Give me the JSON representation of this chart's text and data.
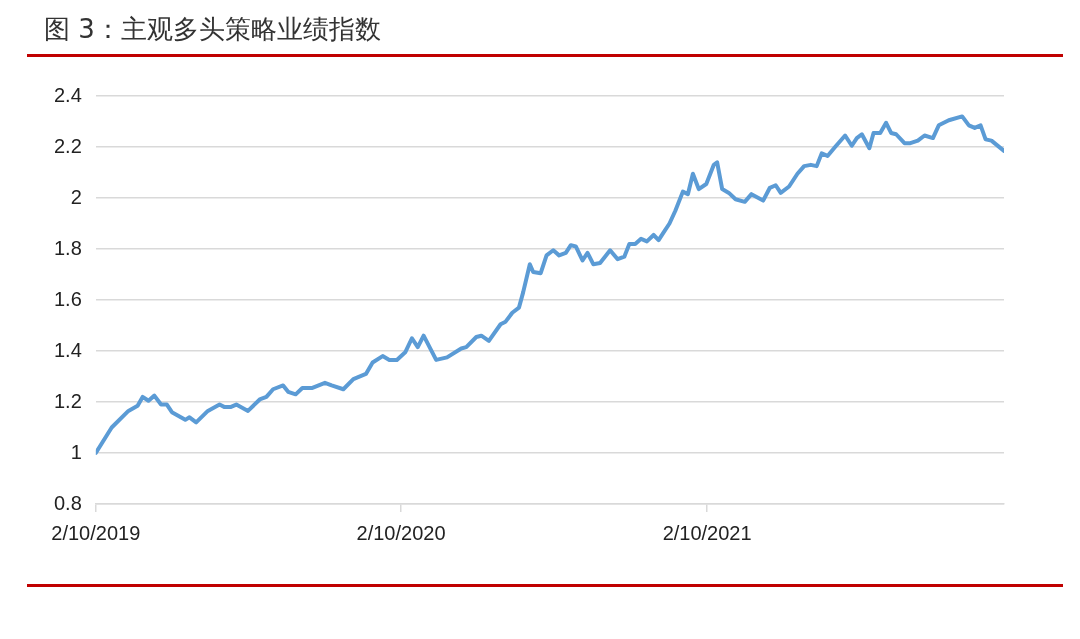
{
  "chart_data": {
    "type": "line",
    "title": "图 3：主观多头策略业绩指数",
    "x": [
      "2019-02-10",
      "2019-03-01",
      "2019-03-21",
      "2019-04-01",
      "2019-04-07",
      "2019-04-14",
      "2019-04-21",
      "2019-04-29",
      "2019-05-06",
      "2019-05-12",
      "2019-05-28",
      "2019-06-02",
      "2019-06-10",
      "2019-06-24",
      "2019-07-08",
      "2019-07-14",
      "2019-07-21",
      "2019-07-28",
      "2019-08-11",
      "2019-08-25",
      "2019-09-02",
      "2019-09-10",
      "2019-09-22",
      "2019-09-28",
      "2019-10-07",
      "2019-10-15",
      "2019-10-27",
      "2019-11-11",
      "2019-11-19",
      "2019-12-03",
      "2019-12-15",
      "2019-12-30",
      "2020-01-07",
      "2020-01-19",
      "2020-01-27",
      "2020-02-05",
      "2020-02-15",
      "2020-02-23",
      "2020-03-01",
      "2020-03-08",
      "2020-03-23",
      "2020-04-05",
      "2020-04-22",
      "2020-04-28",
      "2020-05-10",
      "2020-05-16",
      "2020-05-25",
      "2020-06-08",
      "2020-06-14",
      "2020-06-22",
      "2020-06-30",
      "2020-07-05",
      "2020-07-13",
      "2020-07-17",
      "2020-07-26",
      "2020-08-02",
      "2020-08-10",
      "2020-08-17",
      "2020-08-25",
      "2020-08-31",
      "2020-09-06",
      "2020-09-14",
      "2020-09-20",
      "2020-09-27",
      "2020-10-05",
      "2020-10-17",
      "2020-10-26",
      "2020-11-03",
      "2020-11-09",
      "2020-11-16",
      "2020-11-23",
      "2020-11-30",
      "2020-12-08",
      "2020-12-14",
      "2020-12-20",
      "2020-12-27",
      "2021-01-03",
      "2021-01-12",
      "2021-01-18",
      "2021-01-24",
      "2021-01-31",
      "2021-02-09",
      "2021-02-18",
      "2021-02-22",
      "2021-02-28",
      "2021-03-08",
      "2021-03-16",
      "2021-03-27",
      "2021-04-04",
      "2021-04-18",
      "2021-04-26",
      "2021-05-03",
      "2021-05-09",
      "2021-05-19",
      "2021-05-29",
      "2021-06-06",
      "2021-06-14",
      "2021-06-21",
      "2021-06-27",
      "2021-07-04",
      "2021-07-13",
      "2021-07-25",
      "2021-08-02",
      "2021-08-08",
      "2021-08-14",
      "2021-08-23",
      "2021-08-28",
      "2021-09-05",
      "2021-09-12",
      "2021-09-18",
      "2021-09-24",
      "2021-10-04",
      "2021-10-11",
      "2021-10-20",
      "2021-10-28",
      "2021-11-07",
      "2021-11-14",
      "2021-11-26",
      "2021-12-12",
      "2021-12-20",
      "2021-12-27",
      "2022-01-03",
      "2022-01-09",
      "2022-01-16",
      "2022-01-31"
    ],
    "series": [
      {
        "color": "#5b9bd5",
        "values": [
          1.0,
          1.1,
          1.165,
          1.185,
          1.22,
          1.205,
          1.225,
          1.19,
          1.19,
          1.16,
          1.13,
          1.14,
          1.12,
          1.165,
          1.19,
          1.18,
          1.18,
          1.19,
          1.165,
          1.21,
          1.22,
          1.25,
          1.265,
          1.24,
          1.23,
          1.255,
          1.255,
          1.275,
          1.265,
          1.25,
          1.29,
          1.31,
          1.355,
          1.38,
          1.365,
          1.365,
          1.395,
          1.45,
          1.415,
          1.46,
          1.365,
          1.375,
          1.41,
          1.415,
          1.455,
          1.46,
          1.44,
          1.505,
          1.515,
          1.55,
          1.57,
          1.63,
          1.74,
          1.71,
          1.705,
          1.775,
          1.795,
          1.775,
          1.785,
          1.815,
          1.81,
          1.755,
          1.785,
          1.74,
          1.745,
          1.795,
          1.76,
          1.77,
          1.82,
          1.82,
          1.84,
          1.83,
          1.855,
          1.835,
          1.865,
          1.9,
          1.95,
          2.025,
          2.015,
          2.095,
          2.035,
          2.055,
          2.13,
          2.14,
          2.035,
          2.02,
          1.995,
          1.985,
          2.015,
          1.99,
          2.04,
          2.05,
          2.02,
          2.045,
          2.095,
          2.125,
          2.13,
          2.125,
          2.175,
          2.165,
          2.2,
          2.245,
          2.205,
          2.235,
          2.25,
          2.195,
          2.255,
          2.255,
          2.295,
          2.255,
          2.25,
          2.215,
          2.215,
          2.225,
          2.245,
          2.235,
          2.285,
          2.305,
          2.32,
          2.285,
          2.275,
          2.285,
          2.23,
          2.225,
          2.185
        ]
      }
    ],
    "xlim": [
      "2019-02-10",
      "2022-01-31"
    ],
    "xticks": [
      {
        "value": "2019-02-10",
        "label": "2/10/2019"
      },
      {
        "value": "2020-02-10",
        "label": "2/10/2020"
      },
      {
        "value": "2021-02-10",
        "label": "2/10/2021"
      }
    ],
    "ylim": [
      0.8,
      2.4
    ],
    "yticks": [
      0.8,
      1,
      1.2,
      1.4,
      1.6,
      1.8,
      2,
      2.2,
      2.4
    ],
    "grid": "y",
    "marker": "none",
    "line_style": "solid"
  }
}
